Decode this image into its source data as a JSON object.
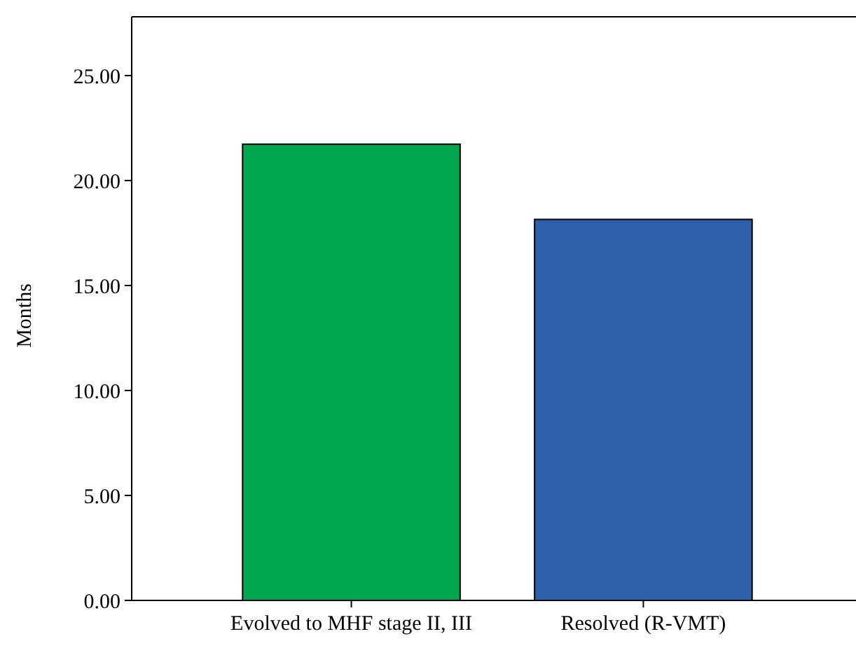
{
  "chart_data": {
    "type": "bar",
    "ylabel": "Months",
    "categories": [
      "Evolved to MHF stage II, III",
      "Resolved (R-VMT)"
    ],
    "values": [
      21.73,
      18.15
    ],
    "colors": [
      "#00a64f",
      "#2f60ab"
    ],
    "ylim": [
      0,
      27.8
    ],
    "yticks": [
      {
        "value": 0,
        "label": "0.00"
      },
      {
        "value": 5,
        "label": "5.00"
      },
      {
        "value": 10,
        "label": "10.00"
      },
      {
        "value": 15,
        "label": "15.00"
      },
      {
        "value": 20,
        "label": "20.00"
      },
      {
        "value": 25,
        "label": "25.00"
      }
    ],
    "grid": false
  }
}
